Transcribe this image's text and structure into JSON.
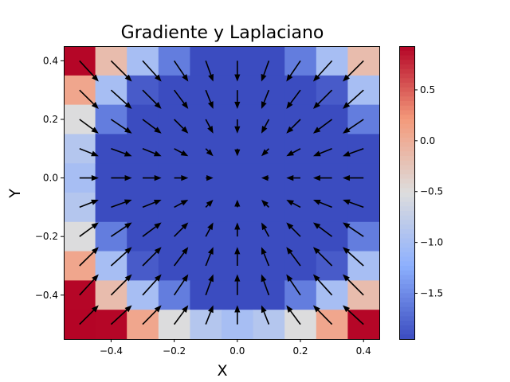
{
  "chart_data": {
    "type": "heatmap",
    "title": "Gradiente y Laplaciano",
    "xlabel": "X",
    "ylabel": "Y",
    "xlim": [
      -0.55,
      0.45
    ],
    "ylim": [
      -0.55,
      0.45
    ],
    "xticks": [
      -0.4,
      -0.2,
      0.0,
      0.2,
      0.4
    ],
    "xtick_labels": [
      "−0.4",
      "−0.2",
      "0.0",
      "0.2",
      "0.4"
    ],
    "yticks": [
      -0.4,
      -0.2,
      0.0,
      0.2,
      0.4
    ],
    "ytick_labels": [
      "−0.4",
      "−0.2",
      "0.0",
      "0.2",
      "0.4"
    ],
    "grid_x": [
      -0.5,
      -0.4,
      -0.3,
      -0.2,
      -0.1,
      0.0,
      0.1,
      0.2,
      0.3,
      0.4
    ],
    "grid_y": [
      0.4,
      0.3,
      0.2,
      0.1,
      0.0,
      -0.1,
      -0.2,
      -0.3,
      -0.4,
      -0.5
    ],
    "colormap": "coolwarm",
    "overlay": "quiver",
    "arrow_color": "#000000",
    "colorbar": {
      "vmin": -1.95,
      "vmax": 0.93,
      "ticks": [
        0.5,
        0.0,
        -0.5,
        -1.0,
        -1.5
      ],
      "tick_labels": [
        "0.5",
        "0.0",
        "−0.5",
        "−1.0",
        "−1.5"
      ]
    }
  }
}
